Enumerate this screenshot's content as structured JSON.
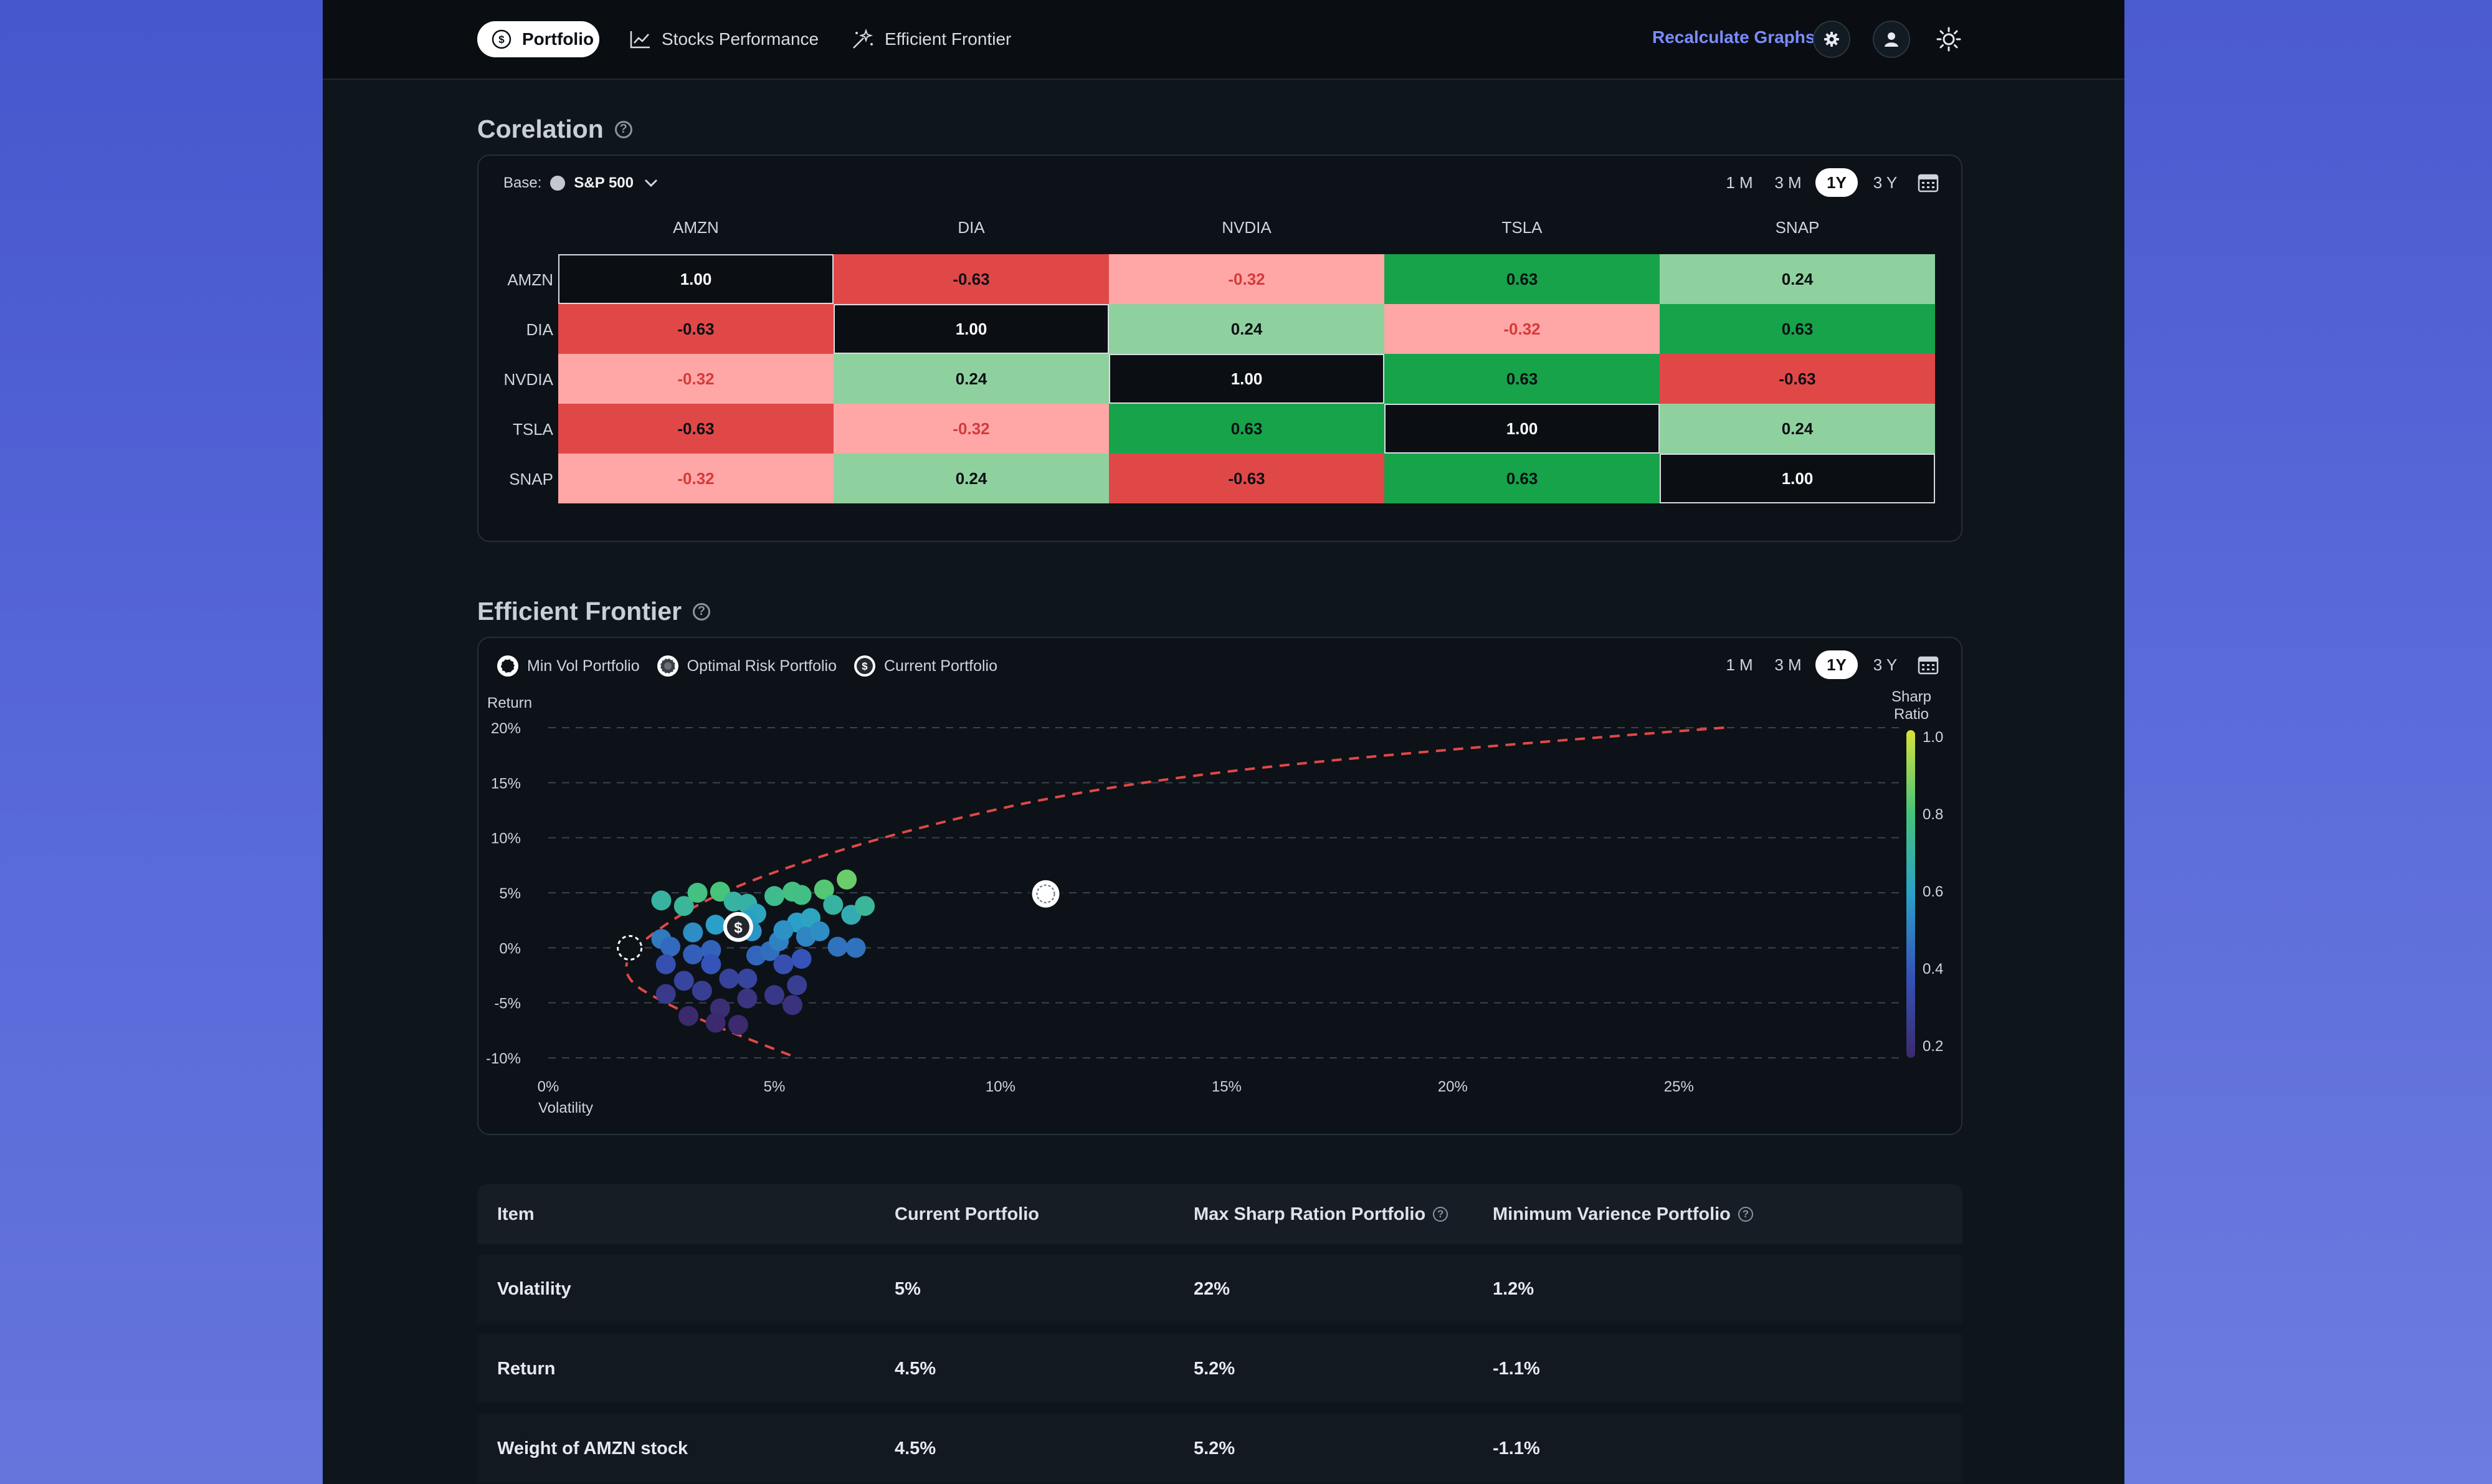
{
  "nav": {
    "tabs": [
      {
        "label": "Portfolio",
        "icon": "dollar-circle-icon",
        "active": true
      },
      {
        "label": "Stocks Performance",
        "icon": "line-chart-icon",
        "active": false
      },
      {
        "label": "Efficient Frontier",
        "icon": "sparkle-icon",
        "active": false
      }
    ],
    "recalculate_label": "Recalculate Graphs",
    "actions": [
      "gear-icon",
      "user-icon",
      "sun-icon"
    ]
  },
  "correlation": {
    "title": "Corelation",
    "base_label": "Base:",
    "base_value": "S&P 500",
    "periods": [
      "1 M",
      "3 M",
      "1Y",
      "3 Y"
    ],
    "active_period": "1Y",
    "columns": [
      "AMZN",
      "DIA",
      "NVDIA",
      "TSLA",
      "SNAP"
    ],
    "rows": [
      {
        "label": "AMZN",
        "values": [
          "1.00",
          "-0.63",
          "-0.32",
          "0.63",
          "0.24"
        ]
      },
      {
        "label": "DIA",
        "values": [
          "-0.63",
          "1.00",
          "0.24",
          "-0.32",
          "0.63"
        ]
      },
      {
        "label": "NVDIA",
        "values": [
          "-0.32",
          "0.24",
          "1.00",
          "0.63",
          "-0.63"
        ]
      },
      {
        "label": "TSLA",
        "values": [
          "-0.63",
          "-0.32",
          "0.63",
          "1.00",
          "0.24"
        ]
      },
      {
        "label": "SNAP",
        "values": [
          "-0.32",
          "0.24",
          "-0.63",
          "0.63",
          "1.00"
        ]
      }
    ],
    "colors": {
      "strong_neg": "#e04848",
      "weak_neg": "#ffa7a7",
      "strong_pos": "#17a34a",
      "weak_pos": "#8fd19e",
      "diagonal": "#0b0f14"
    }
  },
  "frontier": {
    "title": "Efficient Frontier",
    "legend": [
      "Min Vol Portfolio",
      "Optimal Risk Portfolio",
      "Current Portfolio"
    ],
    "periods": [
      "1 M",
      "3 M",
      "1Y",
      "3 Y"
    ],
    "active_period": "1Y"
  },
  "chart_data": {
    "type": "scatter",
    "ylabel": "Return",
    "xlabel": "Volatility",
    "x_ticks": [
      "0%",
      "5%",
      "10%",
      "15%",
      "20%",
      "25%"
    ],
    "y_ticks": [
      "20%",
      "15%",
      "10%",
      "5%",
      "0%",
      "-5%",
      "-10%"
    ],
    "xlim": [
      0,
      27
    ],
    "ylim": [
      -10,
      20
    ],
    "colorbar": {
      "label": "Sharp Ratio",
      "ticks": [
        "1.0",
        "0.8",
        "0.6",
        "0.4",
        "0.2"
      ],
      "range": [
        0.2,
        1.0
      ]
    },
    "grid": true,
    "frontier_curve": [
      [
        26,
        20
      ],
      [
        18,
        17.5
      ],
      [
        12,
        14.5
      ],
      [
        8,
        10.8
      ],
      [
        5,
        7
      ],
      [
        3,
        3.5
      ],
      [
        1.3,
        -2
      ],
      [
        3,
        -6
      ],
      [
        5.5,
        -10
      ]
    ],
    "markers": [
      {
        "name": "Min Vol Portfolio",
        "x": 1.8,
        "y": 0
      },
      {
        "name": "Current Portfolio",
        "x": 4.2,
        "y": 1.9
      },
      {
        "name": "Optimal Risk Portfolio",
        "x": 11,
        "y": 4.9
      }
    ],
    "points": [
      [
        2.5,
        4.3,
        0.7
      ],
      [
        3.0,
        3.8,
        0.72
      ],
      [
        3.3,
        5.0,
        0.78
      ],
      [
        3.8,
        5.1,
        0.8
      ],
      [
        4.1,
        4.2,
        0.7
      ],
      [
        4.4,
        4.0,
        0.69
      ],
      [
        4.6,
        3.1,
        0.63
      ],
      [
        4.4,
        2.5,
        0.6
      ],
      [
        3.7,
        2.1,
        0.6
      ],
      [
        3.2,
        1.4,
        0.55
      ],
      [
        2.5,
        0.8,
        0.5
      ],
      [
        2.7,
        0.1,
        0.46
      ],
      [
        3.2,
        -0.6,
        0.43
      ],
      [
        3.6,
        -0.2,
        0.44
      ],
      [
        3.6,
        -1.5,
        0.4
      ],
      [
        2.6,
        -1.5,
        0.38
      ],
      [
        3.0,
        -3.0,
        0.33
      ],
      [
        3.4,
        -3.9,
        0.3
      ],
      [
        4.0,
        -2.8,
        0.32
      ],
      [
        4.4,
        -2.8,
        0.33
      ],
      [
        4.6,
        -0.7,
        0.45
      ],
      [
        4.9,
        -0.3,
        0.47
      ],
      [
        5.1,
        0.6,
        0.52
      ],
      [
        4.5,
        1.5,
        0.57
      ],
      [
        5.0,
        4.7,
        0.75
      ],
      [
        5.4,
        5.1,
        0.78
      ],
      [
        5.6,
        4.8,
        0.77
      ],
      [
        6.1,
        5.3,
        0.82
      ],
      [
        6.6,
        6.2,
        0.85
      ],
      [
        6.3,
        3.9,
        0.7
      ],
      [
        6.7,
        3.0,
        0.66
      ],
      [
        7.0,
        3.8,
        0.72
      ],
      [
        5.5,
        2.3,
        0.6
      ],
      [
        5.8,
        2.7,
        0.62
      ],
      [
        5.2,
        1.6,
        0.56
      ],
      [
        5.7,
        1.0,
        0.53
      ],
      [
        6.0,
        1.5,
        0.55
      ],
      [
        6.4,
        0.1,
        0.48
      ],
      [
        6.8,
        0.0,
        0.48
      ],
      [
        5.2,
        -1.5,
        0.38
      ],
      [
        5.6,
        -1.0,
        0.4
      ],
      [
        5.5,
        -3.4,
        0.3
      ],
      [
        5.0,
        -4.3,
        0.27
      ],
      [
        4.4,
        -4.6,
        0.25
      ],
      [
        3.8,
        -5.5,
        0.22
      ],
      [
        2.6,
        -4.2,
        0.28
      ],
      [
        3.1,
        -6.2,
        0.2
      ],
      [
        3.7,
        -6.8,
        0.2
      ],
      [
        4.2,
        -7.0,
        0.2
      ],
      [
        5.4,
        -5.2,
        0.24
      ]
    ]
  },
  "table": {
    "headers": [
      {
        "label": "Item",
        "help": false
      },
      {
        "label": "Current Portfolio",
        "help": false
      },
      {
        "label": "Max Sharp Ration Portfolio",
        "help": true
      },
      {
        "label": "Minimum Varience Portfolio",
        "help": true
      }
    ],
    "rows": [
      [
        "Volatility",
        "5%",
        "22%",
        "1.2%"
      ],
      [
        "Return",
        "4.5%",
        "5.2%",
        "-1.1%"
      ],
      [
        "Weight of AMZN stock",
        "4.5%",
        "5.2%",
        "-1.1%"
      ]
    ]
  }
}
